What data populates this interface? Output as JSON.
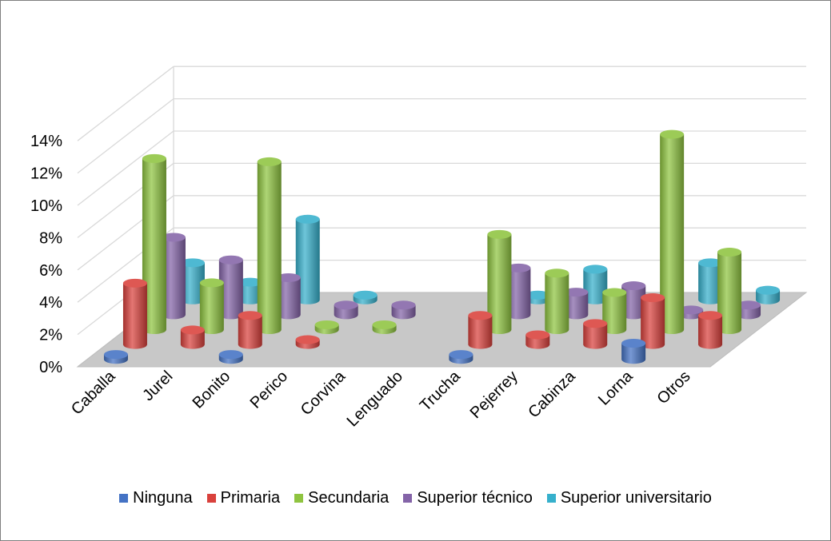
{
  "chart_data": {
    "type": "bar",
    "style": "3d-cylinder",
    "title": "",
    "xlabel": "",
    "ylabel": "",
    "ylim": [
      0,
      14
    ],
    "yticks": [
      0,
      2,
      4,
      6,
      8,
      10,
      12,
      14
    ],
    "ytick_labels": [
      "0%",
      "2%",
      "4%",
      "6%",
      "8%",
      "10%",
      "12%",
      "14%"
    ],
    "categories": [
      "Caballa",
      "Jurel",
      "Bonito",
      "Perico",
      "Corvina",
      "Lenguado",
      "Trucha",
      "Pejerrey",
      "Cabinza",
      "Lorna",
      "Otros"
    ],
    "legend_position": "bottom",
    "gridlines": true,
    "series": [
      {
        "name": "Ninguna",
        "color": "#4472c4",
        "values": [
          0.3,
          0,
          0.3,
          0,
          0,
          0,
          0.3,
          0,
          0,
          1.0,
          0
        ]
      },
      {
        "name": "Primaria",
        "color": "#d9413c",
        "values": [
          3.8,
          0.9,
          1.8,
          0.3,
          0,
          0,
          1.8,
          0.6,
          1.3,
          2.9,
          1.8
        ]
      },
      {
        "name": "Secundaria",
        "color": "#8fc440",
        "values": [
          10.6,
          2.9,
          10.4,
          0.3,
          0.3,
          0,
          5.9,
          3.5,
          2.3,
          12.1,
          4.8
        ]
      },
      {
        "name": "Superior técnico",
        "color": "#8464a8",
        "values": [
          4.8,
          3.4,
          2.3,
          0.6,
          0.6,
          0,
          2.9,
          1.4,
          1.8,
          0.3,
          0.6
        ]
      },
      {
        "name": "Superior universitario",
        "color": "#36b0cc",
        "values": [
          2.3,
          1.1,
          5.0,
          0.3,
          0,
          0,
          0.3,
          1.9,
          0,
          2.3,
          0.6
        ]
      }
    ]
  }
}
